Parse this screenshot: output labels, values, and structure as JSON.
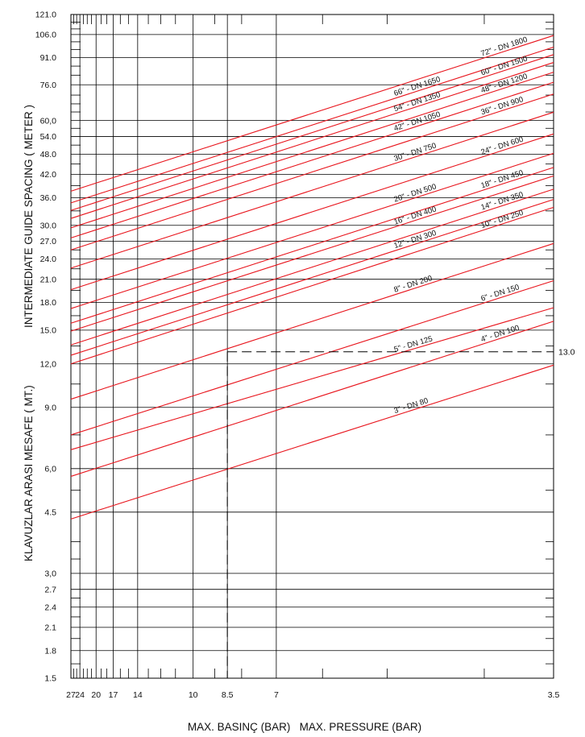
{
  "chart_data": {
    "type": "line",
    "title": "",
    "xlabel": "MAX. BASINÇ (BAR)   MAX. PRESSURE (BAR)",
    "ylabel_left": "KLAVUZLAR ARASI MESAFE ( MT.)",
    "ylabel_right": "INTERMEDIATE GUIDE SPACING ( METER )",
    "x_scale": "reciprocal (decreasing pressure to the right)",
    "xlim": [
      27,
      3.5
    ],
    "ylim": [
      1.5,
      121.0
    ],
    "y_scale": "log",
    "grid": true,
    "line_color": "#e8141c",
    "grid_color": "#000000",
    "x_tick_labels": [
      "27",
      "24",
      "20",
      "17",
      "14",
      "10",
      "8.5",
      "7",
      "3.5"
    ],
    "x_tick_values": [
      27,
      24,
      20,
      17,
      14,
      10,
      8.5,
      7,
      3.5
    ],
    "y_tick_labels": [
      "121.0",
      "106.0",
      "91.0",
      "76.0",
      "60,0",
      "54.0",
      "48.0",
      "42.0",
      "36.0",
      "30.0",
      "27.0",
      "24.0",
      "21.0",
      "18.0",
      "15.0",
      "12,0",
      "9.0",
      "6,0",
      "4.5",
      "3,0",
      "2.7",
      "2.4",
      "2.1",
      "1.8",
      "1.5"
    ],
    "y_tick_values": [
      121.0,
      106.0,
      91.0,
      76.0,
      60.0,
      54.0,
      48.0,
      42.0,
      36.0,
      30.0,
      27.0,
      24.0,
      21.0,
      18.0,
      15.0,
      12.0,
      9.0,
      6.0,
      4.5,
      3.0,
      2.7,
      2.4,
      2.1,
      1.8,
      1.5
    ],
    "series": [
      {
        "name": "3\" - DN 80",
        "x": [
          27,
          3.5
        ],
        "y": [
          4.3,
          11.9
        ]
      },
      {
        "name": "4\" - DN 100",
        "x": [
          27,
          3.5
        ],
        "y": [
          5.7,
          15.9
        ]
      },
      {
        "name": "5\" - DN 125",
        "x": [
          27,
          3.5
        ],
        "y": [
          6.8,
          17.4
        ]
      },
      {
        "name": "6\" - DN 150",
        "x": [
          27,
          3.5
        ],
        "y": [
          7.5,
          20.8
        ]
      },
      {
        "name": "8\" - DN 200",
        "x": [
          27,
          3.5
        ],
        "y": [
          9.5,
          26.6
        ]
      },
      {
        "name": "10\" - DN 250",
        "x": [
          27,
          3.5
        ],
        "y": [
          12.0,
          33.8
        ]
      },
      {
        "name": "12\" - DN 300",
        "x": [
          27,
          3.5
        ],
        "y": [
          12.7,
          35.6
        ]
      },
      {
        "name": "14\" - DN 350",
        "x": [
          27,
          3.5
        ],
        "y": [
          13.6,
          38.1
        ]
      },
      {
        "name": "16\" - DN 400",
        "x": [
          27,
          3.5
        ],
        "y": [
          14.9,
          41.6
        ]
      },
      {
        "name": "18\" - DN 450",
        "x": [
          27,
          3.5
        ],
        "y": [
          15.7,
          44.0
        ]
      },
      {
        "name": "20\" - DN 500",
        "x": [
          27,
          3.5
        ],
        "y": [
          17.3,
          48.3
        ]
      },
      {
        "name": "24\" - DN 600",
        "x": [
          27,
          3.5
        ],
        "y": [
          19.6,
          54.9
        ]
      },
      {
        "name": "30\" - DN 750",
        "x": [
          27,
          3.5
        ],
        "y": [
          22.6,
          63.4
        ]
      },
      {
        "name": "36\" - DN 900",
        "x": [
          27,
          3.5
        ],
        "y": [
          25.5,
          71.5
        ]
      },
      {
        "name": "42\" - DN 1050",
        "x": [
          27,
          3.5
        ],
        "y": [
          27.6,
          77.3
        ]
      },
      {
        "name": "48\" - DN 1200",
        "x": [
          27,
          3.5
        ],
        "y": [
          29.5,
          82.6
        ]
      },
      {
        "name": "54\" - DN 1350",
        "x": [
          27,
          3.5
        ],
        "y": [
          31.4,
          88.1
        ]
      },
      {
        "name": "60\" - DN 1500",
        "x": [
          27,
          3.5
        ],
        "y": [
          33.1,
          92.8
        ]
      },
      {
        "name": "66\" - DN 1650",
        "x": [
          27,
          3.5
        ],
        "y": [
          34.8,
          97.5
        ]
      },
      {
        "name": "72\" - DN 1800",
        "x": [
          27,
          3.5
        ],
        "y": [
          37.6,
          105.3
        ]
      }
    ],
    "annotations": [
      {
        "text": "13.0",
        "type": "dashed reference line",
        "pressure": 8.5,
        "spacing": 13.0
      }
    ]
  }
}
